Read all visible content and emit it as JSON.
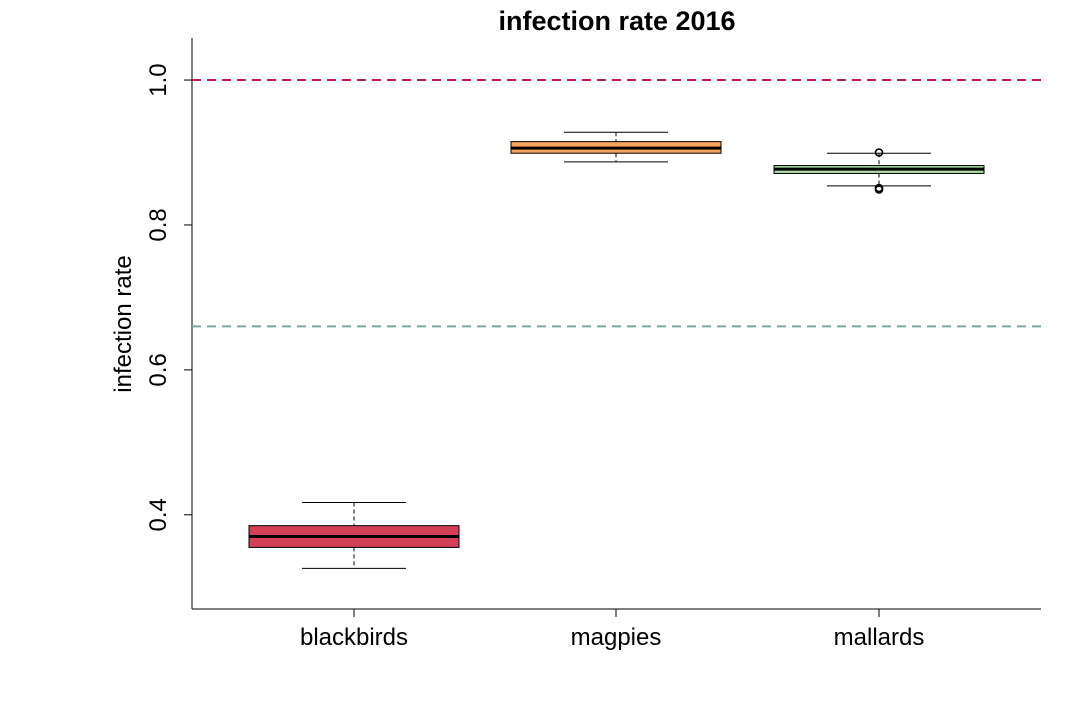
{
  "chart_data": {
    "type": "box",
    "title": "infection rate 2016",
    "xlabel": "",
    "ylabel": "infection rate",
    "ylim": [
      0.27,
      1.058
    ],
    "yticks": [
      0.4,
      0.6,
      0.8,
      1.0
    ],
    "ytick_labels": [
      "0.4",
      "0.6",
      "0.8",
      "1.0"
    ],
    "categories": [
      "blackbirds",
      "magpies",
      "mallards"
    ],
    "boxes": [
      {
        "category": "blackbirds",
        "min": 0.326,
        "q1": 0.355,
        "median": 0.37,
        "q3": 0.385,
        "max": 0.417,
        "outliers": [],
        "color": "#d44056"
      },
      {
        "category": "magpies",
        "min": 0.887,
        "q1": 0.899,
        "median": 0.906,
        "q3": 0.915,
        "max": 0.928,
        "outliers": [],
        "color": "#f6a45c"
      },
      {
        "category": "mallards",
        "min": 0.854,
        "q1": 0.871,
        "median": 0.877,
        "q3": 0.882,
        "max": 0.899,
        "outliers": [
          0.9,
          0.849,
          0.851
        ],
        "color": "#a6d8a0"
      }
    ],
    "reference_lines": [
      {
        "y": 1.0,
        "color": "#c2185b",
        "style": "dashed"
      },
      {
        "y": 0.66,
        "color": "#74a8a0",
        "style": "dashed"
      }
    ],
    "grid": false,
    "legend": "none"
  }
}
